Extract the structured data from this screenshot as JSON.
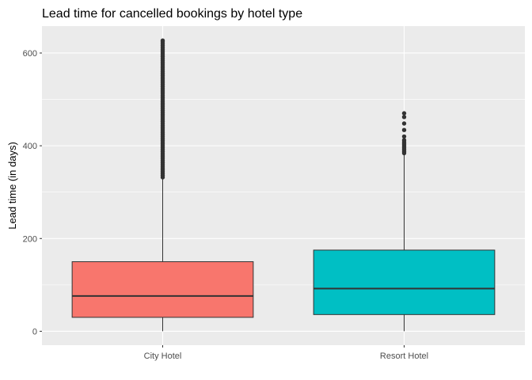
{
  "chart_data": {
    "type": "box",
    "title": "Lead time for cancelled bookings by hotel type",
    "xlabel": "",
    "ylabel": "Lead time (in days)",
    "ylim": [
      -30,
      658
    ],
    "yticks": [
      0,
      200,
      400,
      600
    ],
    "categories": [
      "City Hotel",
      "Resort Hotel"
    ],
    "grid": true,
    "legend": "none",
    "boxes": [
      {
        "name": "City Hotel",
        "color": "#F8766D",
        "min": 0,
        "q1": 30,
        "median": 76,
        "q3": 150,
        "max": 330,
        "outliers": [
          332,
          336,
          340,
          344,
          348,
          352,
          356,
          360,
          364,
          368,
          372,
          376,
          380,
          384,
          388,
          392,
          396,
          400,
          404,
          408,
          412,
          416,
          420,
          424,
          428,
          432,
          436,
          440,
          444,
          448,
          452,
          456,
          460,
          464,
          468,
          472,
          476,
          480,
          484,
          488,
          492,
          496,
          500,
          504,
          508,
          512,
          516,
          520,
          524,
          528,
          532,
          536,
          540,
          544,
          548,
          552,
          556,
          560,
          564,
          568,
          572,
          576,
          580,
          584,
          588,
          592,
          596,
          600,
          604,
          608,
          612,
          616,
          620,
          624,
          627
        ]
      },
      {
        "name": "Resort Hotel",
        "color": "#00BFC4",
        "min": 0,
        "q1": 36,
        "median": 92,
        "q3": 175,
        "max": 382,
        "outliers": [
          384,
          387,
          390,
          393,
          396,
          399,
          402,
          405,
          408,
          412,
          420,
          434,
          448,
          462,
          470
        ]
      }
    ]
  }
}
